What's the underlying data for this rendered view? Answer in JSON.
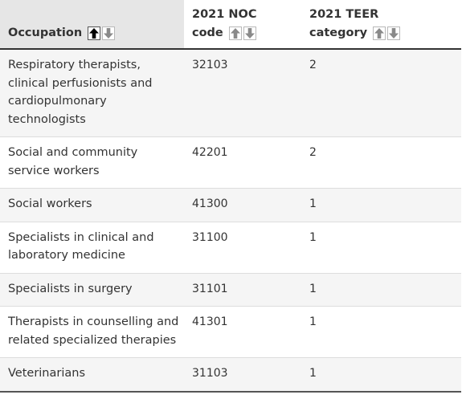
{
  "table": {
    "headers": [
      {
        "label": "Occupation",
        "label_line1": "",
        "label_line2": "Occupation",
        "sorted": "asc"
      },
      {
        "label": "2021 NOC code",
        "label_line1": "2021 NOC",
        "label_line2": "code",
        "sorted": ""
      },
      {
        "label": "2021 TEER category",
        "label_line1": "2021 TEER",
        "label_line2": "category",
        "sorted": ""
      }
    ],
    "sort_asc_icon": "arrow-up-icon",
    "sort_desc_icon": "arrow-down-icon",
    "rows": [
      {
        "occupation": "Respiratory therapists, clinical perfusionists and cardiopulmonary technologists",
        "noc": "32103",
        "teer": "2"
      },
      {
        "occupation": "Social and community service workers",
        "noc": "42201",
        "teer": "2"
      },
      {
        "occupation": "Social workers",
        "noc": "41300",
        "teer": "1"
      },
      {
        "occupation": "Specialists in clinical and laboratory medicine",
        "noc": "31100",
        "teer": "1"
      },
      {
        "occupation": "Specialists in surgery",
        "noc": "31101",
        "teer": "1"
      },
      {
        "occupation": "Therapists in counselling and related specialized therapies",
        "noc": "41301",
        "teer": "1"
      },
      {
        "occupation": "Veterinarians",
        "noc": "31103",
        "teer": "1"
      }
    ],
    "colors": {
      "sorted_header_bg": "#e6e6e6",
      "striped_row_bg": "#f5f5f5",
      "text": "#333333"
    }
  }
}
